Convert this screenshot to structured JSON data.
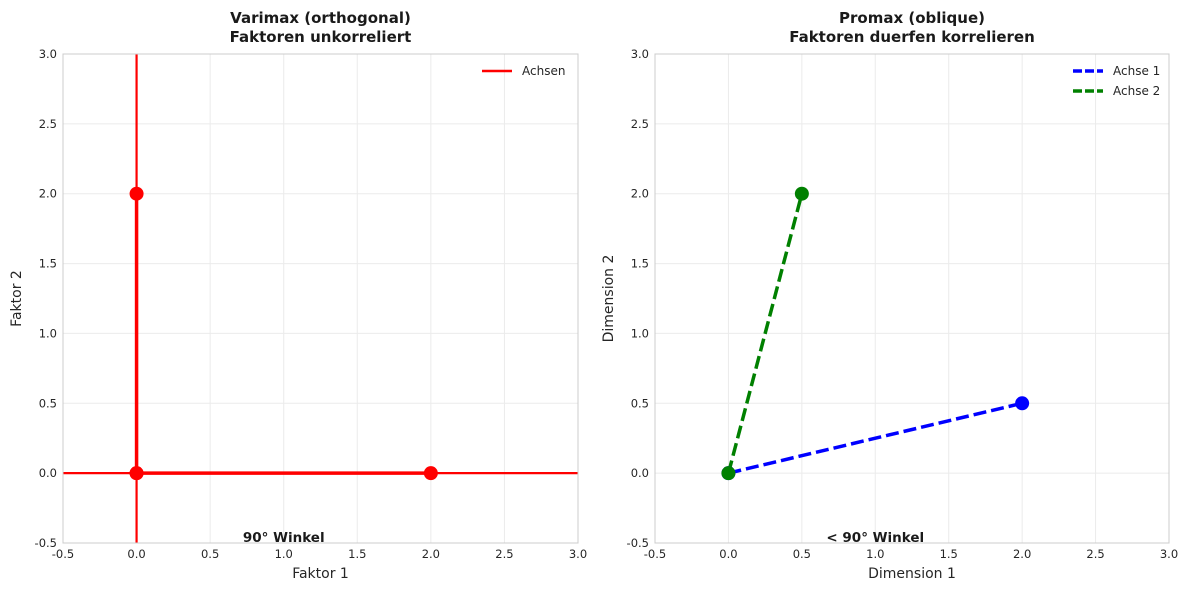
{
  "chart_data": [
    {
      "type": "line",
      "title": [
        "Varimax (orthogonal)",
        "Faktoren unkorreliert"
      ],
      "xlabel": "Faktor 1",
      "ylabel": "Faktor 2",
      "xlim": [
        -0.5,
        3.0
      ],
      "ylim": [
        -0.5,
        3.0
      ],
      "xticks": [
        -0.5,
        0.0,
        0.5,
        1.0,
        1.5,
        2.0,
        2.5,
        3.0
      ],
      "yticks": [
        -0.5,
        0.0,
        0.5,
        1.0,
        1.5,
        2.0,
        2.5,
        3.0
      ],
      "grid": true,
      "legend_position": "top-right",
      "reference_lines": [
        {
          "orientation": "horizontal",
          "value": 0,
          "color": "#ff0000"
        },
        {
          "orientation": "vertical",
          "value": 0,
          "color": "#ff0000"
        }
      ],
      "series": [
        {
          "name": "Achsen",
          "color": "#ff0000",
          "style": "solid",
          "legend": true,
          "x": [
            0,
            2
          ],
          "y": [
            0,
            0
          ]
        },
        {
          "name": "",
          "color": "#ff0000",
          "style": "solid",
          "legend": false,
          "x": [
            0,
            0
          ],
          "y": [
            0,
            2
          ]
        }
      ],
      "annotation": {
        "text": "90° Winkel",
        "x": 1.0,
        "y": -0.5
      }
    },
    {
      "type": "line",
      "title": [
        "Promax (oblique)",
        "Faktoren duerfen korrelieren"
      ],
      "xlabel": "Dimension 1",
      "ylabel": "Dimension 2",
      "xlim": [
        -0.5,
        3.0
      ],
      "ylim": [
        -0.5,
        3.0
      ],
      "xticks": [
        -0.5,
        0.0,
        0.5,
        1.0,
        1.5,
        2.0,
        2.5,
        3.0
      ],
      "yticks": [
        -0.5,
        0.0,
        0.5,
        1.0,
        1.5,
        2.0,
        2.5,
        3.0
      ],
      "grid": true,
      "legend_position": "top-right",
      "reference_lines": [],
      "series": [
        {
          "name": "Achse 1",
          "color": "#0000ff",
          "style": "dashed",
          "legend": true,
          "x": [
            0,
            2
          ],
          "y": [
            0,
            0.5
          ]
        },
        {
          "name": "Achse 2",
          "color": "#008000",
          "style": "dashed",
          "legend": true,
          "x": [
            0,
            0.5
          ],
          "y": [
            0,
            2
          ]
        }
      ],
      "annotation": {
        "text": "< 90° Winkel",
        "x": 1.0,
        "y": -0.5
      }
    }
  ]
}
